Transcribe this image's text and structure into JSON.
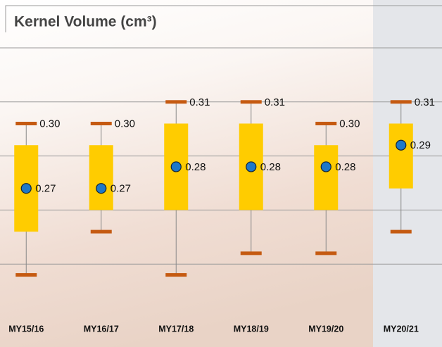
{
  "chart_data": {
    "type": "box",
    "title": "Kernel Volume (cm³)",
    "categories": [
      "MY15/16",
      "MY16/17",
      "MY17/18",
      "MY18/19",
      "MY19/20",
      "MY20/21"
    ],
    "max": {
      "values": [
        0.3,
        0.3,
        0.31,
        0.31,
        0.3,
        0.31
      ],
      "value_labels": [
        "0.30",
        "0.30",
        "0.31",
        "0.31",
        "0.30",
        "0.31"
      ],
      "color": "#c55a11"
    },
    "q3": {
      "values": [
        0.29,
        0.29,
        0.3,
        0.3,
        0.29,
        0.3
      ]
    },
    "mean": {
      "values": [
        0.27,
        0.27,
        0.28,
        0.28,
        0.28,
        0.29
      ],
      "color": "#1e78c8"
    },
    "q1": {
      "values": [
        0.25,
        0.26,
        0.26,
        0.26,
        0.26,
        0.27
      ]
    },
    "min": {
      "values": [
        0.23,
        0.25,
        0.23,
        0.24,
        0.24,
        0.25
      ],
      "color": "#c55a11"
    },
    "box_color": "#ffcc00",
    "ylim": [
      0.21,
      0.335
    ],
    "yticks": [
      0.235,
      0.26,
      0.285,
      0.31,
      0.335
    ],
    "grid": true
  }
}
